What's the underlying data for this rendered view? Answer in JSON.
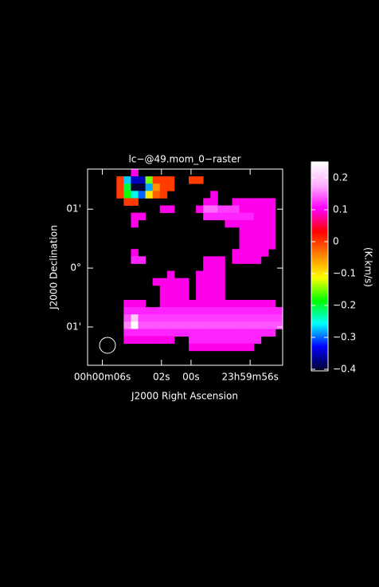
{
  "chart_data": {
    "type": "raster",
    "title": "lc−@49.mom_0−raster",
    "xlabel": "J2000 Right Ascension",
    "ylabel": "J2000 Declination",
    "colorbar_label": "(K.km/s)",
    "xlim": [
      7.0,
      -6.2
    ],
    "xticks": [
      {
        "value": 6,
        "label": "00h00m06s"
      },
      {
        "value": 2,
        "label": "02s"
      },
      {
        "value": 0,
        "label": "00s"
      },
      {
        "value": -4,
        "label": "23h59m56s"
      }
    ],
    "ylim": [
      -1.65,
      1.68
    ],
    "yticks": [
      {
        "value": 1,
        "label": "01'"
      },
      {
        "value": 0,
        "label": "0°"
      },
      {
        "value": -1,
        "label": "01'"
      }
    ],
    "zlim": [
      -0.4,
      0.25
    ],
    "zticks": [
      0.2,
      0.1,
      0,
      {
        "value": -0.1,
        "label": "−0.1"
      },
      {
        "value": -0.2,
        "label": "−0.2"
      },
      {
        "value": -0.3,
        "label": "−0.3"
      },
      {
        "value": -0.4,
        "label": "−0.4"
      }
    ],
    "colors": [
      "#000030",
      "#0000ff",
      "#00ffff",
      "#00ff00",
      "#ffff00",
      "#ff8000",
      "#ff0000",
      "#ff00ff",
      "#ffb0ff",
      "#ffffff"
    ],
    "z": [
      [
        null,
        null,
        null,
        null,
        null,
        null,
        0.1,
        null,
        null,
        null,
        null,
        null,
        null,
        null,
        null,
        null,
        null,
        null,
        null,
        null,
        null,
        null,
        null,
        null,
        null,
        null,
        null
      ],
      [
        null,
        null,
        null,
        null,
        0,
        -0.27,
        -0.35,
        -0.35,
        -0.15,
        0,
        0,
        0,
        null,
        null,
        0,
        0,
        null,
        null,
        null,
        null,
        null,
        null,
        null,
        null,
        null,
        null,
        null
      ],
      [
        null,
        null,
        null,
        null,
        0,
        -0.2,
        -0.4,
        -0.4,
        -0.28,
        -0.05,
        0,
        0,
        null,
        null,
        null,
        null,
        null,
        null,
        null,
        null,
        null,
        null,
        null,
        null,
        null,
        null,
        null
      ],
      [
        null,
        null,
        null,
        null,
        0,
        -0.18,
        -0.25,
        -0.3,
        -0.1,
        -0.02,
        0,
        null,
        null,
        null,
        null,
        null,
        null,
        0.1,
        null,
        null,
        null,
        null,
        null,
        null,
        null,
        null,
        null
      ],
      [
        null,
        null,
        null,
        null,
        null,
        0,
        0,
        null,
        null,
        null,
        null,
        null,
        null,
        null,
        null,
        null,
        0.1,
        0.1,
        null,
        null,
        0.1,
        0.1,
        0.1,
        0.1,
        0.1,
        0.1,
        null
      ],
      [
        null,
        null,
        null,
        null,
        null,
        null,
        null,
        null,
        null,
        null,
        0.1,
        0.1,
        null,
        null,
        null,
        0.1,
        0.15,
        0.15,
        0.13,
        0.13,
        0.13,
        0.1,
        0.1,
        0.1,
        0.1,
        0.1,
        null
      ],
      [
        null,
        null,
        null,
        null,
        null,
        null,
        0.1,
        0.1,
        null,
        null,
        null,
        null,
        null,
        null,
        null,
        null,
        0.12,
        0.12,
        0.12,
        0.12,
        0.12,
        0.12,
        0.12,
        0.1,
        0.1,
        0.1,
        null
      ],
      [
        null,
        null,
        null,
        null,
        null,
        null,
        0.1,
        null,
        null,
        null,
        null,
        null,
        null,
        null,
        null,
        null,
        null,
        null,
        null,
        0.1,
        0.1,
        0.1,
        0.1,
        0.1,
        0.1,
        0.1,
        null
      ],
      [
        null,
        null,
        null,
        null,
        null,
        null,
        null,
        null,
        null,
        null,
        null,
        null,
        null,
        null,
        null,
        null,
        null,
        null,
        null,
        null,
        null,
        0.1,
        0.1,
        0.1,
        0.1,
        0.1,
        null
      ],
      [
        null,
        null,
        null,
        null,
        null,
        null,
        null,
        null,
        null,
        null,
        null,
        null,
        null,
        null,
        null,
        null,
        null,
        null,
        null,
        null,
        null,
        0.1,
        0.1,
        0.1,
        0.1,
        0.1,
        null
      ],
      [
        null,
        null,
        null,
        null,
        null,
        null,
        null,
        null,
        null,
        null,
        null,
        null,
        null,
        null,
        null,
        null,
        null,
        null,
        null,
        null,
        null,
        0.1,
        0.1,
        0.1,
        0.1,
        0.1,
        null
      ],
      [
        null,
        null,
        null,
        null,
        null,
        null,
        0.1,
        null,
        null,
        null,
        null,
        null,
        null,
        null,
        null,
        null,
        null,
        null,
        null,
        null,
        0.1,
        0.1,
        0.1,
        0.1,
        0.1,
        null,
        null
      ],
      [
        null,
        null,
        null,
        null,
        null,
        null,
        0.12,
        0.12,
        null,
        null,
        null,
        null,
        null,
        null,
        null,
        null,
        0.1,
        0.1,
        0.1,
        null,
        0.1,
        0.1,
        0.1,
        0.1,
        null,
        null,
        null
      ],
      [
        null,
        null,
        null,
        null,
        null,
        null,
        null,
        null,
        null,
        null,
        null,
        null,
        null,
        null,
        null,
        null,
        0.1,
        0.1,
        0.1,
        null,
        null,
        null,
        null,
        null,
        null,
        null,
        null
      ],
      [
        null,
        null,
        null,
        null,
        null,
        null,
        null,
        null,
        null,
        null,
        null,
        0.1,
        null,
        null,
        null,
        0.1,
        0.1,
        0.1,
        0.1,
        null,
        null,
        null,
        null,
        null,
        null,
        null,
        null
      ],
      [
        null,
        null,
        null,
        null,
        null,
        null,
        null,
        null,
        null,
        0.1,
        0.1,
        0.1,
        0.1,
        0.1,
        null,
        0.1,
        0.1,
        0.1,
        0.1,
        null,
        null,
        null,
        null,
        null,
        null,
        null,
        null
      ],
      [
        null,
        null,
        null,
        null,
        null,
        null,
        null,
        null,
        null,
        null,
        0.1,
        0.1,
        0.1,
        0.1,
        null,
        0.1,
        0.1,
        0.1,
        0.1,
        null,
        null,
        null,
        null,
        null,
        null,
        null,
        null
      ],
      [
        null,
        null,
        null,
        null,
        null,
        null,
        null,
        null,
        null,
        null,
        0.1,
        0.1,
        0.1,
        0.1,
        null,
        0.1,
        0.1,
        0.1,
        0.1,
        null,
        null,
        null,
        null,
        null,
        null,
        null,
        null
      ],
      [
        null,
        null,
        null,
        null,
        null,
        0.1,
        0.1,
        0.1,
        null,
        null,
        0.1,
        0.1,
        0.1,
        0.1,
        0.1,
        0.1,
        0.1,
        0.1,
        0.1,
        0.1,
        0.1,
        0.1,
        0.1,
        0.1,
        0.1,
        0.1,
        null
      ],
      [
        null,
        null,
        null,
        null,
        null,
        0.12,
        0.12,
        0.12,
        0.12,
        0.12,
        0.12,
        0.12,
        0.12,
        0.12,
        0.12,
        0.12,
        0.12,
        0.12,
        0.12,
        0.12,
        0.12,
        0.12,
        0.12,
        0.12,
        0.12,
        0.12,
        0.12
      ],
      [
        null,
        null,
        null,
        null,
        null,
        0.14,
        0.2,
        0.13,
        0.13,
        0.13,
        0.13,
        0.13,
        0.13,
        0.13,
        0.13,
        0.13,
        0.13,
        0.13,
        0.13,
        0.13,
        0.13,
        0.13,
        0.13,
        0.13,
        0.13,
        0.13,
        0.13
      ],
      [
        null,
        null,
        null,
        null,
        null,
        0.16,
        0.25,
        0.14,
        0.14,
        0.14,
        0.14,
        0.14,
        0.14,
        0.14,
        0.14,
        0.14,
        0.14,
        0.14,
        0.14,
        0.14,
        0.14,
        0.14,
        0.14,
        0.14,
        0.14,
        0.14,
        0.14
      ],
      [
        null,
        null,
        null,
        null,
        null,
        0.12,
        0.12,
        0.12,
        0.12,
        0.12,
        0.12,
        0.12,
        0.12,
        0.12,
        0.12,
        0.12,
        0.12,
        0.12,
        0.12,
        0.12,
        0.12,
        0.12,
        0.12,
        0.12,
        0.12,
        0.12,
        null
      ],
      [
        null,
        null,
        null,
        null,
        null,
        0.1,
        0.1,
        0.1,
        0.1,
        0.1,
        0.1,
        0.1,
        null,
        null,
        0.12,
        0.12,
        0.12,
        0.12,
        0.12,
        0.12,
        0.12,
        0.12,
        0.12,
        0.12,
        null,
        null,
        null
      ],
      [
        null,
        null,
        null,
        null,
        null,
        null,
        null,
        null,
        null,
        null,
        null,
        null,
        null,
        null,
        0.1,
        0.1,
        0.1,
        0.1,
        0.1,
        0.1,
        0.1,
        0.1,
        0.1,
        null,
        null,
        null,
        null
      ],
      [
        null,
        null,
        null,
        null,
        null,
        null,
        null,
        null,
        null,
        null,
        null,
        null,
        null,
        null,
        null,
        null,
        null,
        null,
        null,
        null,
        null,
        null,
        null,
        null,
        null,
        null,
        null
      ],
      [
        null,
        null,
        null,
        null,
        null,
        null,
        null,
        null,
        null,
        null,
        null,
        null,
        null,
        null,
        null,
        null,
        null,
        null,
        null,
        null,
        null,
        null,
        null,
        null,
        null,
        null,
        null
      ]
    ]
  }
}
